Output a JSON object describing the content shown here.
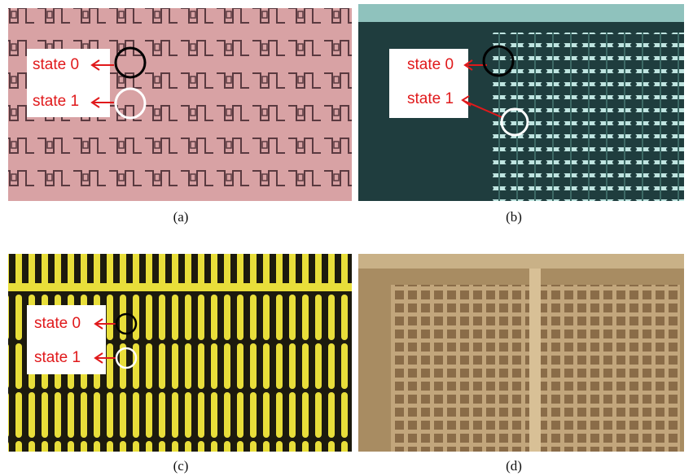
{
  "panels": [
    {
      "caption": "(a)",
      "labels": [
        "state 0",
        "state 1"
      ]
    },
    {
      "caption": "(b)",
      "labels": [
        "state 0",
        "state 1"
      ]
    },
    {
      "caption": "(c)",
      "labels": [
        "state 0",
        "state 1"
      ]
    },
    {
      "caption": "(d)"
    }
  ]
}
